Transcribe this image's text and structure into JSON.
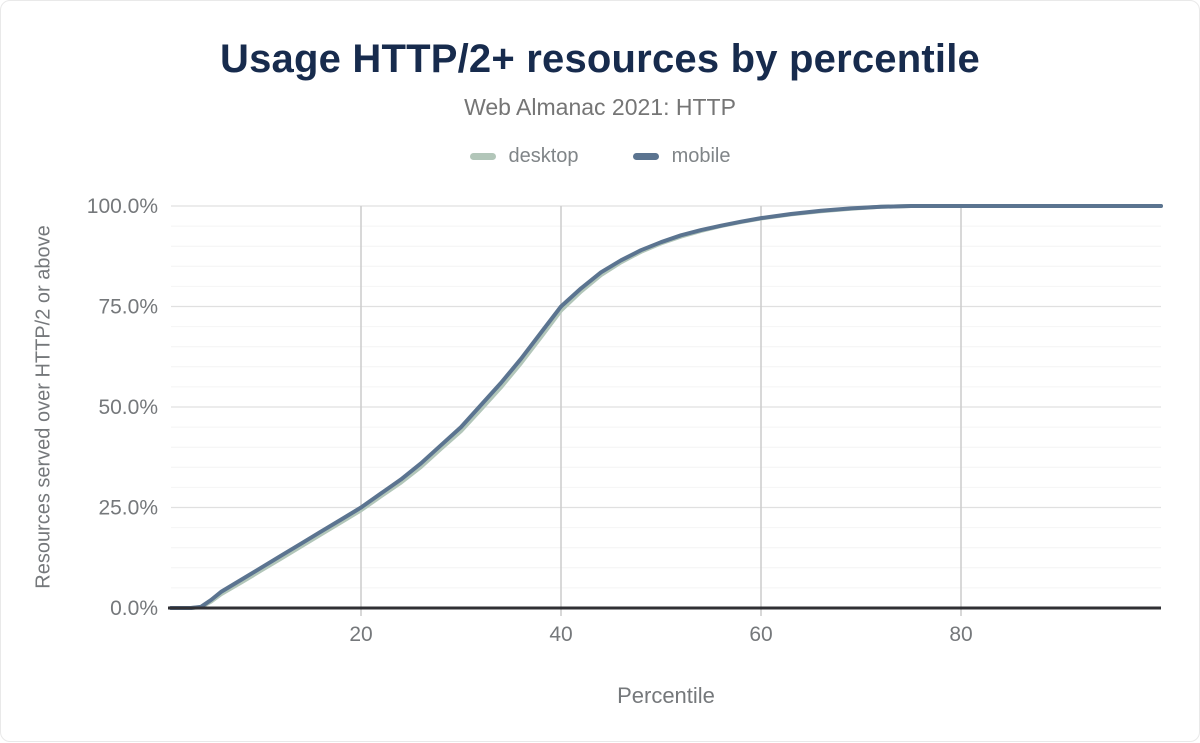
{
  "chart": {
    "title": "Usage HTTP/2+ resources by percentile",
    "subtitle": "Web Almanac 2021: HTTP"
  },
  "colors": {
    "title_text": "#172b4d",
    "muted_text": "#75787b",
    "desktop_series": "#b2c6b9",
    "mobile_series": "#5b7490",
    "grid_major": "#e0e0e0",
    "grid_minor": "#f4f4f4",
    "grid_vertical": "#cccccc",
    "axis_line": "#303034"
  },
  "chart_data": {
    "type": "line",
    "title": "Usage HTTP/2+ resources by percentile",
    "subtitle": "Web Almanac 2021: HTTP",
    "xlabel": "Percentile",
    "ylabel": "Resources served over HTTP/2 or above",
    "xlim": [
      1,
      100
    ],
    "ylim": [
      0,
      100
    ],
    "x_ticks": [
      20,
      40,
      60,
      80
    ],
    "y_tick_values": [
      0,
      25,
      50,
      75,
      100
    ],
    "y_tick_labels": [
      "0.0%",
      "25.0%",
      "50.0%",
      "75.0%",
      "100.0%"
    ],
    "y_minor_step": 5,
    "grid": true,
    "legend_position": "top",
    "x": [
      1,
      2,
      3,
      4,
      5,
      6,
      8,
      10,
      12,
      14,
      16,
      18,
      20,
      22,
      24,
      26,
      28,
      30,
      32,
      34,
      36,
      38,
      40,
      42,
      44,
      46,
      48,
      50,
      52,
      54,
      56,
      58,
      60,
      63,
      66,
      69,
      72,
      75,
      80,
      85,
      90,
      95,
      100
    ],
    "series": [
      {
        "name": "desktop",
        "color": "#b2c6b9",
        "values": [
          0,
          0,
          0,
          0.2,
          1.6,
          3.4,
          6.3,
          9.3,
          12.3,
          15.3,
          18.3,
          21.3,
          24.3,
          27.8,
          31.2,
          35.1,
          39.6,
          44,
          49.4,
          54.9,
          60.9,
          67.4,
          74,
          78.7,
          82.8,
          86,
          88.6,
          90.7,
          92.4,
          93.8,
          95,
          96,
          96.9,
          97.9,
          98.7,
          99.3,
          99.8,
          100,
          100,
          100,
          100,
          100,
          100
        ]
      },
      {
        "name": "mobile",
        "color": "#5b7490",
        "values": [
          0,
          0,
          0,
          0.3,
          2,
          4,
          7,
          10,
          13,
          16,
          19,
          22,
          25,
          28.5,
          32,
          36,
          40.5,
          45,
          50.5,
          56,
          62,
          68.5,
          75,
          79.5,
          83.5,
          86.5,
          89,
          91,
          92.7,
          94,
          95.1,
          96.1,
          97,
          98,
          98.8,
          99.4,
          99.8,
          100,
          100,
          100,
          100,
          100,
          100
        ]
      }
    ]
  }
}
